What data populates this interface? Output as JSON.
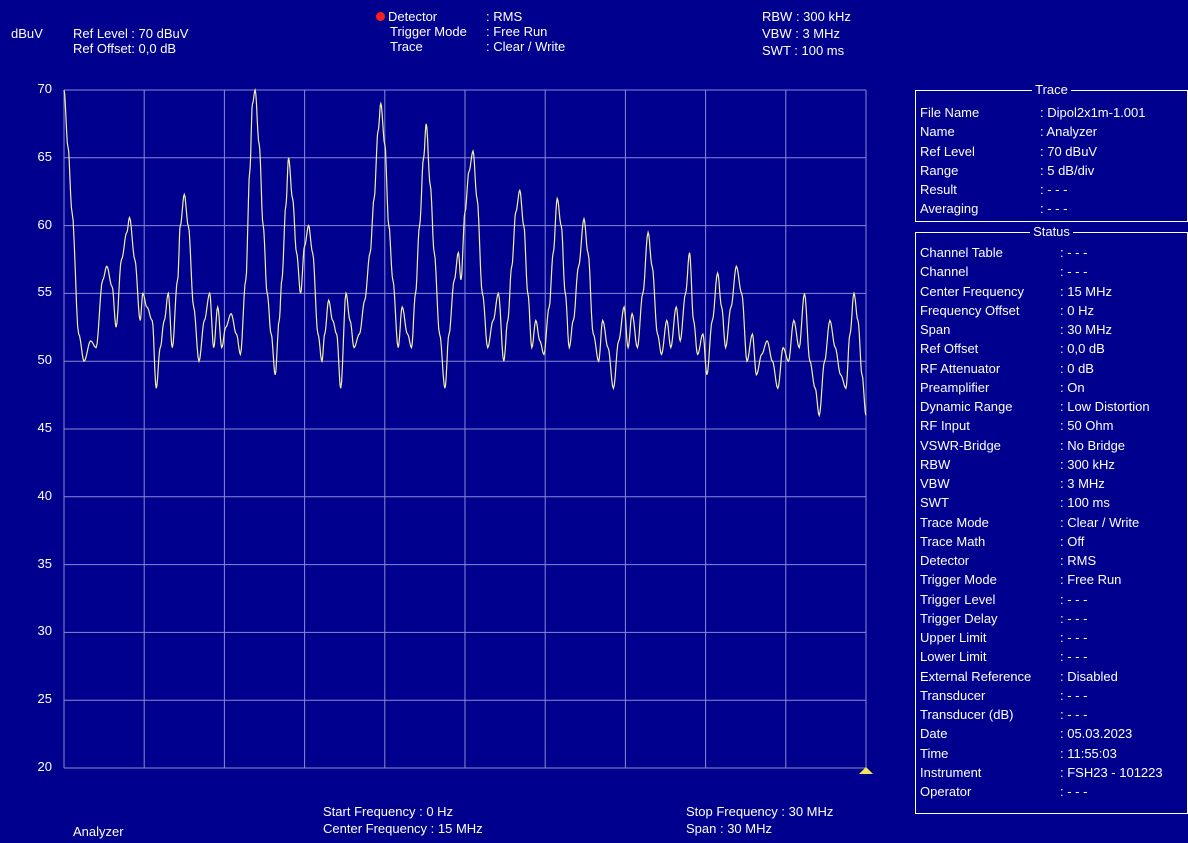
{
  "header": {
    "unit": "dBuV",
    "ref_level_label": "Ref Level",
    "ref_level_value": ": 70  dBuV",
    "ref_offset_label": "Ref Offset",
    "ref_offset_value": ": 0,0 dB",
    "detector_label": "Detector",
    "detector_value": ": RMS",
    "trigger_mode_label": "Trigger Mode",
    "trigger_mode_value": ": Free Run",
    "trace_label": "Trace",
    "trace_value": ": Clear / Write",
    "rbw": "RBW : 300 kHz",
    "vbw": "VBW :    3 MHz",
    "swt": "SWT : 100 ms",
    "detector_color": "#ff1e1e"
  },
  "footer": {
    "mode": "Analyzer",
    "start_label": "Start Frequency    :  0 Hz",
    "center_label": "Center Frequency : 15 MHz",
    "stop_label": "Stop Frequency : 30 MHz",
    "span_label": "Span               : 30 MHz"
  },
  "trace_panel": {
    "title": "Trace",
    "rows": [
      {
        "key": "File Name",
        "value": ": Dipol2x1m-1.001"
      },
      {
        "key": "Name",
        "value": ": Analyzer"
      },
      {
        "key": "Ref Level",
        "value": ":   70   dBuV"
      },
      {
        "key": "Range",
        "value": ": 5 dB/div"
      },
      {
        "key": "Result",
        "value": ": - - -"
      },
      {
        "key": "Averaging",
        "value": ": - - -"
      }
    ]
  },
  "status_panel": {
    "title": "Status",
    "rows": [
      {
        "key": "Channel Table",
        "value": ": - - -"
      },
      {
        "key": "Channel",
        "value": ": - - -"
      },
      {
        "key": "Center Frequency",
        "value": ":   15   MHz"
      },
      {
        "key": "Frequency Offset",
        "value": ":    0   Hz"
      },
      {
        "key": "Span",
        "value": ":   30   MHz"
      },
      {
        "key": "Ref Offset",
        "value": ":     0,0 dB"
      },
      {
        "key": "RF Attenuator",
        "value": ":     0   dB"
      },
      {
        "key": "Preamplifier",
        "value": ": On"
      },
      {
        "key": "Dynamic Range",
        "value": ": Low Distortion"
      },
      {
        "key": "RF Input",
        "value": ":   50   Ohm"
      },
      {
        "key": "VSWR-Bridge",
        "value": ": No Bridge"
      },
      {
        "key": "RBW",
        "value": ": 300   kHz"
      },
      {
        "key": "VBW",
        "value": ":    3    MHz"
      },
      {
        "key": "SWT",
        "value": ": 100    ms"
      },
      {
        "key": "Trace Mode",
        "value": ": Clear / Write"
      },
      {
        "key": "Trace Math",
        "value": ": Off"
      },
      {
        "key": "Detector",
        "value": ": RMS"
      },
      {
        "key": "Trigger Mode",
        "value": ": Free Run"
      },
      {
        "key": "Trigger Level",
        "value": ": - - -"
      },
      {
        "key": "Trigger Delay",
        "value": ": - - -"
      },
      {
        "key": "Upper Limit",
        "value": ": - - -"
      },
      {
        "key": "Lower Limit",
        "value": ": - - -"
      },
      {
        "key": "External Reference",
        "value": ": Disabled"
      },
      {
        "key": "Transducer",
        "value": ": - - -"
      },
      {
        "key": "Transducer (dB)",
        "value": ": - - -"
      },
      {
        "key": "Date",
        "value": ": 05.03.2023"
      },
      {
        "key": "Time",
        "value": ": 11:55:03"
      },
      {
        "key": "Instrument",
        "value": ": FSH23 - 101223"
      },
      {
        "key": "Operator",
        "value": ": - - -"
      }
    ]
  },
  "chart_data": {
    "type": "line",
    "ylim": [
      20,
      70
    ],
    "xlim": [
      0,
      30
    ],
    "x_unit": "MHz",
    "y_unit": "dBuV",
    "yticks": [
      "70",
      "65",
      "60",
      "55",
      "50",
      "45",
      "40",
      "35",
      "30",
      "25",
      "20"
    ],
    "grid": true,
    "background_color": "#00008f",
    "grid_color": "#8a8ad0",
    "trace_color": "#f5f0a0",
    "marker_color": "#f7e35a",
    "peaks": [
      [
        0.0,
        70
      ],
      [
        0.15,
        65.8
      ],
      [
        0.3,
        61
      ],
      [
        0.55,
        52
      ],
      [
        0.75,
        50
      ],
      [
        1.0,
        51.5
      ],
      [
        1.2,
        51
      ],
      [
        1.45,
        56
      ],
      [
        1.6,
        57
      ],
      [
        1.8,
        55.5
      ],
      [
        1.95,
        52.5
      ],
      [
        2.15,
        57.5
      ],
      [
        2.35,
        59.5
      ],
      [
        2.45,
        60.6
      ],
      [
        2.65,
        57.5
      ],
      [
        2.85,
        53
      ],
      [
        2.95,
        55
      ],
      [
        3.1,
        54
      ],
      [
        3.3,
        53
      ],
      [
        3.45,
        48
      ],
      [
        3.6,
        51
      ],
      [
        3.75,
        53
      ],
      [
        3.9,
        55
      ],
      [
        4.05,
        51
      ],
      [
        4.25,
        56
      ],
      [
        4.35,
        60
      ],
      [
        4.5,
        62.3
      ],
      [
        4.65,
        60
      ],
      [
        4.85,
        54
      ],
      [
        5.05,
        50
      ],
      [
        5.25,
        53
      ],
      [
        5.45,
        55
      ],
      [
        5.6,
        51
      ],
      [
        5.75,
        54
      ],
      [
        5.9,
        51
      ],
      [
        6.05,
        52.5
      ],
      [
        6.25,
        53.5
      ],
      [
        6.45,
        52
      ],
      [
        6.6,
        50.5
      ],
      [
        6.8,
        56
      ],
      [
        6.95,
        64
      ],
      [
        7.05,
        69
      ],
      [
        7.15,
        70
      ],
      [
        7.3,
        66
      ],
      [
        7.45,
        60
      ],
      [
        7.6,
        55
      ],
      [
        7.75,
        52
      ],
      [
        7.9,
        49
      ],
      [
        8.05,
        53
      ],
      [
        8.15,
        56
      ],
      [
        8.3,
        61.5
      ],
      [
        8.4,
        65
      ],
      [
        8.55,
        62
      ],
      [
        8.7,
        58
      ],
      [
        8.85,
        55
      ],
      [
        9.0,
        58.5
      ],
      [
        9.15,
        60
      ],
      [
        9.3,
        58
      ],
      [
        9.5,
        52
      ],
      [
        9.65,
        50
      ],
      [
        9.75,
        52
      ],
      [
        9.9,
        54.5
      ],
      [
        10.05,
        53
      ],
      [
        10.2,
        52
      ],
      [
        10.35,
        48
      ],
      [
        10.55,
        55
      ],
      [
        10.7,
        53
      ],
      [
        10.85,
        51
      ],
      [
        11.05,
        52
      ],
      [
        11.25,
        54.5
      ],
      [
        11.45,
        58
      ],
      [
        11.6,
        62
      ],
      [
        11.75,
        67
      ],
      [
        11.85,
        69
      ],
      [
        12.0,
        66
      ],
      [
        12.15,
        60
      ],
      [
        12.3,
        56
      ],
      [
        12.5,
        51
      ],
      [
        12.65,
        54
      ],
      [
        12.85,
        52
      ],
      [
        13.0,
        51
      ],
      [
        13.15,
        55
      ],
      [
        13.3,
        60
      ],
      [
        13.45,
        65
      ],
      [
        13.55,
        67.5
      ],
      [
        13.7,
        63
      ],
      [
        13.85,
        58
      ],
      [
        14.05,
        52
      ],
      [
        14.25,
        48
      ],
      [
        14.4,
        52
      ],
      [
        14.6,
        56
      ],
      [
        14.75,
        58
      ],
      [
        14.85,
        56
      ],
      [
        15.0,
        61
      ],
      [
        15.15,
        64
      ],
      [
        15.3,
        65.5
      ],
      [
        15.45,
        62
      ],
      [
        15.65,
        55
      ],
      [
        15.85,
        51
      ],
      [
        16.05,
        53
      ],
      [
        16.25,
        55
      ],
      [
        16.45,
        50
      ],
      [
        16.6,
        53
      ],
      [
        16.75,
        57
      ],
      [
        16.9,
        61
      ],
      [
        17.05,
        62.6
      ],
      [
        17.2,
        60
      ],
      [
        17.35,
        55
      ],
      [
        17.5,
        51
      ],
      [
        17.65,
        53
      ],
      [
        17.8,
        51.5
      ],
      [
        17.95,
        50.5
      ],
      [
        18.15,
        54
      ],
      [
        18.3,
        58
      ],
      [
        18.45,
        62
      ],
      [
        18.6,
        60
      ],
      [
        18.75,
        55
      ],
      [
        18.9,
        51
      ],
      [
        19.05,
        53
      ],
      [
        19.25,
        57
      ],
      [
        19.45,
        60.5
      ],
      [
        19.6,
        58
      ],
      [
        19.8,
        52
      ],
      [
        20.0,
        50
      ],
      [
        20.15,
        53
      ],
      [
        20.35,
        51
      ],
      [
        20.55,
        48
      ],
      [
        20.75,
        51.5
      ],
      [
        20.95,
        54
      ],
      [
        21.1,
        51
      ],
      [
        21.25,
        53.5
      ],
      [
        21.45,
        51
      ],
      [
        21.65,
        55
      ],
      [
        21.85,
        59.5
      ],
      [
        22.0,
        57
      ],
      [
        22.2,
        52
      ],
      [
        22.35,
        50.5
      ],
      [
        22.55,
        53
      ],
      [
        22.7,
        51
      ],
      [
        22.9,
        54
      ],
      [
        23.05,
        51.5
      ],
      [
        23.25,
        55
      ],
      [
        23.4,
        58
      ],
      [
        23.55,
        53
      ],
      [
        23.7,
        50.5
      ],
      [
        23.9,
        52
      ],
      [
        24.05,
        49
      ],
      [
        24.25,
        53
      ],
      [
        24.45,
        56.5
      ],
      [
        24.6,
        54
      ],
      [
        24.75,
        51
      ],
      [
        24.95,
        54
      ],
      [
        25.15,
        57
      ],
      [
        25.35,
        55
      ],
      [
        25.55,
        50
      ],
      [
        25.75,
        52
      ],
      [
        25.9,
        49
      ],
      [
        26.1,
        50.5
      ],
      [
        26.3,
        51.5
      ],
      [
        26.5,
        50
      ],
      [
        26.7,
        48
      ],
      [
        26.9,
        51
      ],
      [
        27.1,
        50
      ],
      [
        27.3,
        53
      ],
      [
        27.5,
        51
      ],
      [
        27.7,
        55
      ],
      [
        27.9,
        50
      ],
      [
        28.1,
        48
      ],
      [
        28.25,
        46
      ],
      [
        28.45,
        50
      ],
      [
        28.65,
        53
      ],
      [
        28.85,
        51
      ],
      [
        29.05,
        49
      ],
      [
        29.25,
        48
      ],
      [
        29.4,
        52
      ],
      [
        29.55,
        55
      ],
      [
        29.7,
        53
      ],
      [
        29.85,
        49
      ],
      [
        30.0,
        46
      ]
    ]
  }
}
